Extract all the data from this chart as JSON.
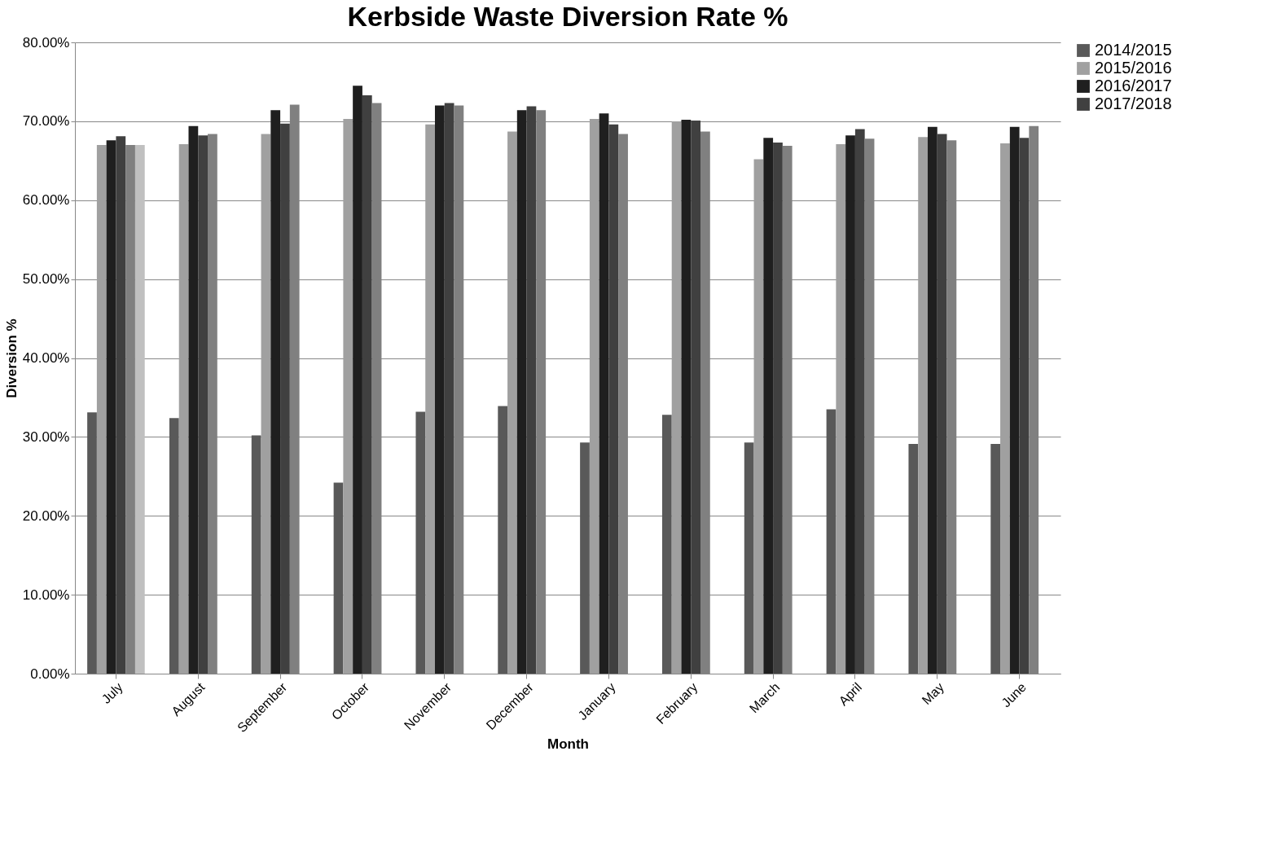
{
  "chart_data": {
    "type": "bar",
    "title": "Kerbside Waste Diversion Rate %",
    "xlabel": "Month",
    "ylabel": "Diversion %",
    "categories": [
      "July",
      "August",
      "September",
      "October",
      "November",
      "December",
      "January",
      "February",
      "March",
      "April",
      "May",
      "June"
    ],
    "series": [
      {
        "name": "2014/2015",
        "color": "#595959",
        "values": [
          33.1,
          32.4,
          30.2,
          24.2,
          33.2,
          33.9,
          29.3,
          32.8,
          29.3,
          33.5,
          29.1,
          29.1
        ]
      },
      {
        "name": "2015/2016",
        "color": "#a0a0a0",
        "values": [
          67.0,
          67.1,
          68.4,
          70.3,
          69.6,
          68.7,
          70.3,
          70.0,
          65.2,
          67.1,
          68.0,
          67.2
        ]
      },
      {
        "name": "2016/2017",
        "color": "#1f1f1f",
        "values": [
          67.6,
          69.4,
          71.4,
          74.5,
          72.0,
          71.4,
          71.0,
          70.2,
          67.9,
          68.2,
          69.3,
          69.3
        ]
      },
      {
        "name": "2017/2018",
        "color": "#404040",
        "values": [
          68.1,
          68.2,
          69.7,
          73.3,
          72.3,
          71.9,
          69.6,
          70.1,
          67.3,
          69.0,
          68.4,
          67.9
        ]
      },
      {
        "color": "#808080",
        "values": [
          67.0,
          68.4,
          72.1,
          72.3,
          72.0,
          71.4,
          68.4,
          68.7,
          66.9,
          67.8,
          67.6,
          69.4
        ]
      },
      {
        "color": "#c0c0c0",
        "values": [
          67.0,
          null,
          null,
          null,
          null,
          null,
          null,
          null,
          null,
          null,
          null,
          null
        ]
      }
    ],
    "ylim": [
      0,
      80
    ],
    "yticks": [
      {
        "value": 0,
        "label": "0.00%"
      },
      {
        "value": 10,
        "label": "10.00%"
      },
      {
        "value": 20,
        "label": "20.00%"
      },
      {
        "value": 30,
        "label": "30.00%"
      },
      {
        "value": 40,
        "label": "40.00%"
      },
      {
        "value": 50,
        "label": "50.00%"
      },
      {
        "value": 60,
        "label": "60.00%"
      },
      {
        "value": 70,
        "label": "70.00%"
      },
      {
        "value": 80,
        "label": "80.00%"
      }
    ],
    "grid": "y",
    "legend": "right"
  }
}
